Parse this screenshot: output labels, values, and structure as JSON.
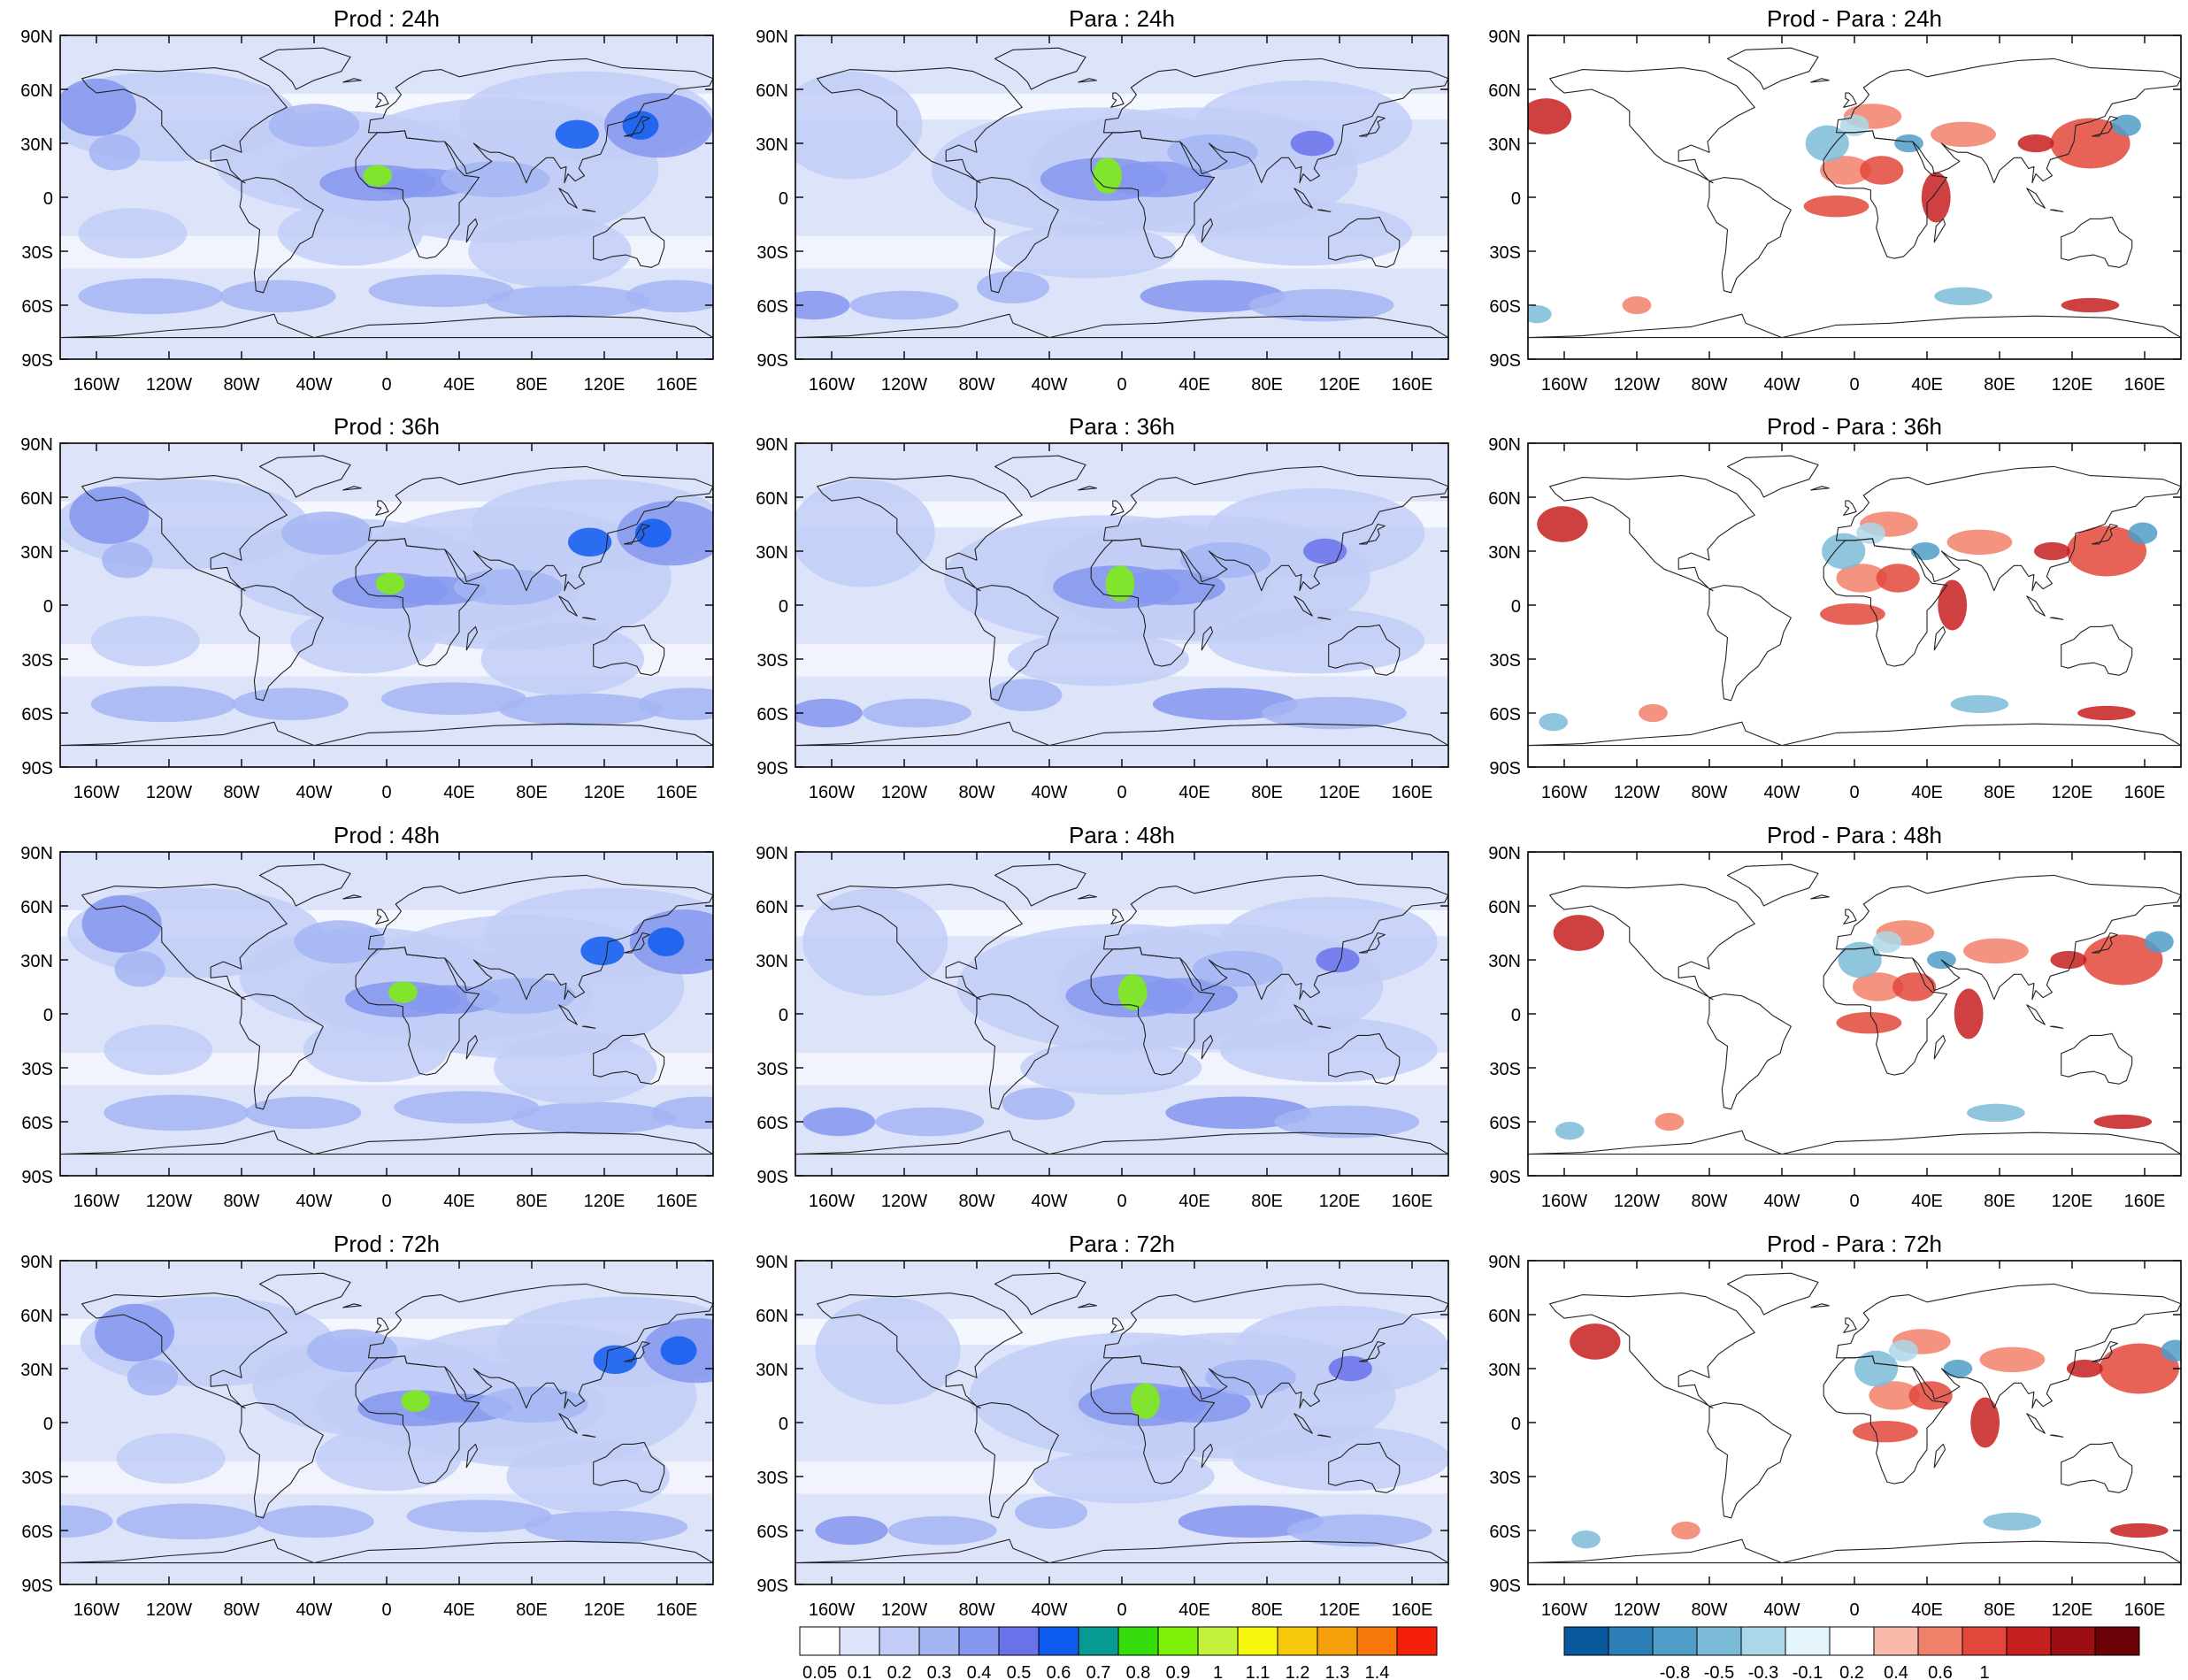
{
  "panels": [
    {
      "title": "Prod : 24h",
      "kind": "field"
    },
    {
      "title": "Para : 24h",
      "kind": "field"
    },
    {
      "title": "Prod - Para : 24h",
      "kind": "diff"
    },
    {
      "title": "Prod : 36h",
      "kind": "field"
    },
    {
      "title": "Para : 36h",
      "kind": "field"
    },
    {
      "title": "Prod - Para : 36h",
      "kind": "diff"
    },
    {
      "title": "Prod : 48h",
      "kind": "field"
    },
    {
      "title": "Para : 48h",
      "kind": "field"
    },
    {
      "title": "Prod - Para : 48h",
      "kind": "diff"
    },
    {
      "title": "Prod : 72h",
      "kind": "field"
    },
    {
      "title": "Para : 72h",
      "kind": "field"
    },
    {
      "title": "Prod - Para : 72h",
      "kind": "diff"
    }
  ],
  "lat_labels": [
    "90N",
    "60N",
    "30N",
    "0",
    "30S",
    "60S",
    "90S"
  ],
  "lon_labels": [
    "160W",
    "120W",
    "80W",
    "40W",
    "0",
    "40E",
    "80E",
    "120E",
    "160E"
  ],
  "field_colorbar": {
    "labels": [
      "0.05",
      "0.1",
      "0.2",
      "0.3",
      "0.4",
      "0.5",
      "0.6",
      "0.7",
      "0.8",
      "0.9",
      "1",
      "1.1",
      "1.2",
      "1.3",
      "1.4"
    ],
    "colors": [
      "#ffffff",
      "#dde4fa",
      "#c2cef7",
      "#a4b5f3",
      "#8597ee",
      "#6a72ea",
      "#0f5cf0",
      "#079a92",
      "#35dd0b",
      "#7ff00a",
      "#c2f23a",
      "#f7f70e",
      "#f6c70a",
      "#f5a00a",
      "#f6780a",
      "#f5200a"
    ]
  },
  "diff_colorbar": {
    "labels": [
      "-0.8",
      "-0.5",
      "-0.3",
      "-0.1",
      "0.2",
      "0.4",
      "0.6",
      "1"
    ],
    "colors": [
      "#08589e",
      "#2b7db6",
      "#4f9dc8",
      "#7cbbd8",
      "#abd8e8",
      "#e3f4fa",
      "#ffffff",
      "#f9b9ab",
      "#f1806a",
      "#e3463a",
      "#c5201e",
      "#9b0f14",
      "#6b0208"
    ]
  }
}
